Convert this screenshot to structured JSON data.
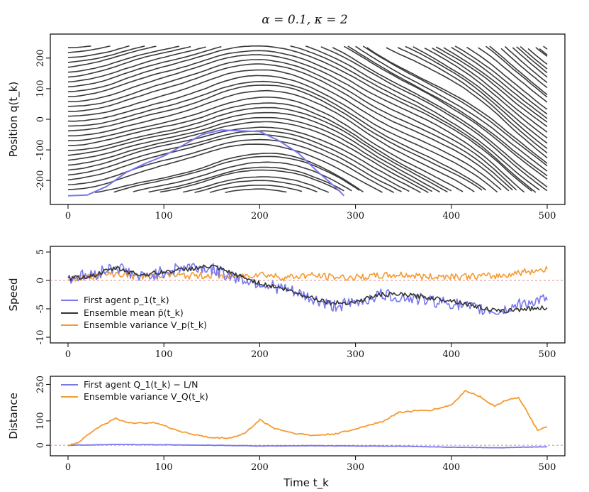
{
  "figure": {
    "title": "α = 0.1, κ = 2",
    "xlabel": "Time t_k"
  },
  "colors": {
    "agent": "#7777ee",
    "agent_dark": "#3333aa",
    "trajectory": "#3a3a3a",
    "mean": "#333333",
    "variance": "#f59a30",
    "zero_line": "#e08a8a"
  },
  "chart_data": [
    {
      "type": "line",
      "panel": "position",
      "ylabel": "Position q(t_k)",
      "xlim": [
        0,
        500
      ],
      "ylim": [
        -260,
        260
      ],
      "xticks": [
        0,
        100,
        200,
        300,
        400,
        500
      ],
      "yticks": [
        -200,
        -100,
        0,
        100,
        200
      ],
      "grid": false,
      "note_trajectories": "30 agents on ring of circumference L with wrap-around; each agent trajectory drawn in dark grey, first agent highlighted in blue",
      "first_agent": {
        "name": "First agent",
        "x": [
          0,
          20,
          40,
          60,
          80,
          100,
          120,
          140,
          160,
          180,
          200,
          220,
          240,
          260,
          280,
          288
        ],
        "y": [
          -250,
          -248,
          -220,
          -175,
          -145,
          -120,
          -85,
          -50,
          -35,
          -38,
          -40,
          -70,
          -110,
          -170,
          -225,
          -250
        ]
      }
    },
    {
      "type": "line",
      "panel": "speed",
      "ylabel": "Speed",
      "xlim": [
        0,
        500
      ],
      "ylim": [
        -10,
        5
      ],
      "xticks": [
        0,
        100,
        200,
        300,
        400,
        500
      ],
      "yticks": [
        -10,
        -5,
        0,
        5
      ],
      "legend_position": "bottom-left",
      "series": [
        {
          "name": "First agent p_1(t_k)",
          "x": [
            0,
            25,
            50,
            75,
            100,
            125,
            150,
            175,
            200,
            225,
            250,
            275,
            300,
            325,
            350,
            375,
            400,
            425,
            450,
            475,
            500
          ],
          "y": [
            0.5,
            1.0,
            2.5,
            0.5,
            1.5,
            2.5,
            2.0,
            0.5,
            -0.5,
            -1.5,
            -3.0,
            -4.5,
            -4.0,
            -2.5,
            -3.0,
            -3.5,
            -4.0,
            -5.0,
            -5.5,
            -4.0,
            -3.5
          ]
        },
        {
          "name": "Ensemble mean p̄(t_k)",
          "x": [
            0,
            25,
            50,
            75,
            100,
            125,
            150,
            175,
            200,
            225,
            250,
            275,
            300,
            325,
            350,
            375,
            400,
            425,
            450,
            475,
            500
          ],
          "y": [
            0.3,
            0.8,
            2.2,
            1.0,
            1.5,
            2.0,
            2.5,
            1.0,
            -0.5,
            -1.5,
            -2.8,
            -4.0,
            -3.8,
            -2.5,
            -2.5,
            -3.0,
            -3.5,
            -4.5,
            -5.5,
            -5.0,
            -4.8
          ]
        },
        {
          "name": "Ensemble variance V_p(t_k)",
          "x": [
            0,
            25,
            50,
            75,
            100,
            125,
            150,
            175,
            200,
            225,
            250,
            275,
            300,
            325,
            350,
            375,
            400,
            425,
            450,
            475,
            500
          ],
          "y": [
            0.2,
            0.8,
            1.2,
            0.6,
            1.0,
            0.8,
            0.9,
            0.6,
            1.2,
            0.5,
            0.9,
            0.6,
            0.5,
            0.8,
            1.0,
            0.6,
            0.8,
            0.7,
            0.8,
            1.5,
            2.0
          ]
        }
      ]
    },
    {
      "type": "line",
      "panel": "distance",
      "ylabel": "Distance",
      "xlim": [
        0,
        500
      ],
      "ylim": [
        -20,
        260
      ],
      "xticks": [
        0,
        100,
        200,
        300,
        400,
        500
      ],
      "yticks": [
        0,
        100,
        250
      ],
      "legend_position": "top-left",
      "series": [
        {
          "name": "First agent Q_1(t_k) − L/N",
          "x": [
            0,
            50,
            100,
            150,
            200,
            250,
            300,
            350,
            400,
            450,
            500
          ],
          "y": [
            0,
            3,
            2,
            0,
            -3,
            -2,
            -3,
            -4,
            -8,
            -10,
            -6
          ]
        },
        {
          "name": "Ensemble variance V_Q(t_k)",
          "x": [
            0,
            10,
            20,
            30,
            40,
            50,
            60,
            75,
            90,
            100,
            115,
            130,
            150,
            170,
            185,
            200,
            215,
            235,
            255,
            275,
            295,
            315,
            330,
            345,
            360,
            380,
            400,
            415,
            430,
            445,
            460,
            470,
            480,
            490,
            500
          ],
          "y": [
            0,
            10,
            40,
            70,
            90,
            110,
            95,
            90,
            95,
            80,
            60,
            45,
            30,
            30,
            50,
            105,
            70,
            50,
            40,
            45,
            60,
            85,
            100,
            135,
            140,
            145,
            165,
            225,
            200,
            160,
            190,
            195,
            130,
            60,
            75
          ]
        }
      ]
    }
  ],
  "x_axis_tick_labels": [
    "0",
    "100",
    "200",
    "300",
    "400",
    "500"
  ],
  "position_tick_labels": [
    "-200",
    "-100",
    "0",
    "100",
    "200"
  ],
  "speed_tick_labels": [
    "-10",
    "-5",
    "0",
    "5"
  ],
  "distance_tick_labels": [
    "0",
    "100",
    "250"
  ]
}
